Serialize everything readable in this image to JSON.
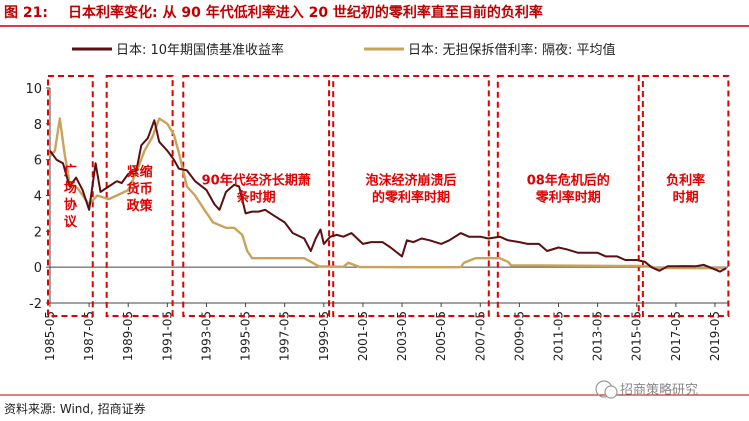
{
  "header": {
    "figure_label": "图 21:",
    "title": "日本利率变化: 从 90 年代低利率进入 20 世纪初的零利率直至目前的负利率"
  },
  "footer": {
    "source": "资料来源: Wind, 招商证券",
    "watermark": "招商策略研究"
  },
  "colors": {
    "header_red": "#c00000",
    "jgb_line": "#5a0f10",
    "call_rate_line": "#c9a35a",
    "annotation_red": "#e00000"
  },
  "chart_data": {
    "type": "line",
    "title": "",
    "xlabel": "",
    "ylabel": "",
    "ylim": [
      -2,
      10
    ],
    "yticks": [
      -2,
      0,
      2,
      4,
      6,
      8,
      10
    ],
    "xlim": [
      "1985-05",
      "2020-01"
    ],
    "xticks": [
      "1985-05",
      "1987-05",
      "1989-05",
      "1991-05",
      "1993-05",
      "1995-05",
      "1997-05",
      "1999-05",
      "2001-05",
      "2003-05",
      "2005-05",
      "2007-05",
      "2009-05",
      "2011-05",
      "2013-05",
      "2015-05",
      "2017-05",
      "2019-05"
    ],
    "legend_position": "top",
    "grid": false,
    "series": [
      {
        "name": "日本: 10年期国债基准收益率",
        "color": "#5a0f10",
        "points": [
          [
            "1985-05",
            6.5
          ],
          [
            "1985-09",
            6.0
          ],
          [
            "1986-01",
            5.8
          ],
          [
            "1986-05",
            4.5
          ],
          [
            "1986-09",
            5.0
          ],
          [
            "1987-01",
            4.3
          ],
          [
            "1987-05",
            3.2
          ],
          [
            "1987-09",
            5.8
          ],
          [
            "1987-12",
            4.2
          ],
          [
            "1988-05",
            4.5
          ],
          [
            "1988-10",
            4.8
          ],
          [
            "1989-01",
            4.7
          ],
          [
            "1989-05",
            5.2
          ],
          [
            "1989-10",
            5.4
          ],
          [
            "1990-01",
            6.8
          ],
          [
            "1990-05",
            7.2
          ],
          [
            "1990-09",
            8.2
          ],
          [
            "1990-12",
            7.0
          ],
          [
            "1991-05",
            6.5
          ],
          [
            "1991-09",
            6.0
          ],
          [
            "1991-12",
            5.5
          ],
          [
            "1992-05",
            5.4
          ],
          [
            "1992-10",
            4.8
          ],
          [
            "1993-05",
            4.3
          ],
          [
            "1993-10",
            3.5
          ],
          [
            "1994-01",
            3.2
          ],
          [
            "1994-05",
            4.2
          ],
          [
            "1994-10",
            4.6
          ],
          [
            "1995-01",
            4.5
          ],
          [
            "1995-05",
            3.0
          ],
          [
            "1995-09",
            3.1
          ],
          [
            "1996-01",
            3.1
          ],
          [
            "1996-05",
            3.2
          ],
          [
            "1996-10",
            2.9
          ],
          [
            "1997-05",
            2.5
          ],
          [
            "1997-10",
            1.9
          ],
          [
            "1998-05",
            1.6
          ],
          [
            "1998-09",
            0.9
          ],
          [
            "1998-12",
            1.6
          ],
          [
            "1999-03",
            2.1
          ],
          [
            "1999-05",
            1.3
          ],
          [
            "1999-09",
            1.7
          ],
          [
            "2000-01",
            1.8
          ],
          [
            "2000-05",
            1.7
          ],
          [
            "2000-10",
            1.9
          ],
          [
            "2001-05",
            1.3
          ],
          [
            "2001-10",
            1.4
          ],
          [
            "2002-05",
            1.4
          ],
          [
            "2002-10",
            1.1
          ],
          [
            "2003-05",
            0.6
          ],
          [
            "2003-08",
            1.5
          ],
          [
            "2003-12",
            1.4
          ],
          [
            "2004-05",
            1.6
          ],
          [
            "2004-10",
            1.5
          ],
          [
            "2005-05",
            1.3
          ],
          [
            "2005-10",
            1.5
          ],
          [
            "2006-05",
            1.9
          ],
          [
            "2006-10",
            1.7
          ],
          [
            "2007-05",
            1.7
          ],
          [
            "2007-10",
            1.6
          ],
          [
            "2008-05",
            1.7
          ],
          [
            "2008-10",
            1.5
          ],
          [
            "2009-05",
            1.4
          ],
          [
            "2009-10",
            1.3
          ],
          [
            "2010-05",
            1.3
          ],
          [
            "2010-10",
            0.9
          ],
          [
            "2011-05",
            1.1
          ],
          [
            "2011-10",
            1.0
          ],
          [
            "2012-05",
            0.8
          ],
          [
            "2012-10",
            0.8
          ],
          [
            "2013-05",
            0.8
          ],
          [
            "2013-10",
            0.6
          ],
          [
            "2014-05",
            0.6
          ],
          [
            "2014-10",
            0.4
          ],
          [
            "2015-05",
            0.4
          ],
          [
            "2015-10",
            0.3
          ],
          [
            "2016-02",
            0.0
          ],
          [
            "2016-07",
            -0.2
          ],
          [
            "2016-12",
            0.05
          ],
          [
            "2017-05",
            0.05
          ],
          [
            "2017-10",
            0.06
          ],
          [
            "2018-05",
            0.05
          ],
          [
            "2018-10",
            0.13
          ],
          [
            "2019-03",
            -0.05
          ],
          [
            "2019-08",
            -0.25
          ],
          [
            "2019-12",
            -0.05
          ]
        ]
      },
      {
        "name": "日本: 无担保拆借利率: 隔夜: 平均值",
        "color": "#c9a35a",
        "points": [
          [
            "1985-05",
            6.2
          ],
          [
            "1985-08",
            6.5
          ],
          [
            "1985-11",
            8.3
          ],
          [
            "1986-02",
            6.3
          ],
          [
            "1986-05",
            4.7
          ],
          [
            "1986-10",
            4.4
          ],
          [
            "1987-05",
            3.5
          ],
          [
            "1987-10",
            4.0
          ],
          [
            "1988-05",
            3.8
          ],
          [
            "1988-10",
            4.0
          ],
          [
            "1989-05",
            4.3
          ],
          [
            "1989-10",
            5.3
          ],
          [
            "1990-03",
            6.5
          ],
          [
            "1990-08",
            7.3
          ],
          [
            "1990-12",
            8.3
          ],
          [
            "1991-05",
            8.0
          ],
          [
            "1991-09",
            7.4
          ],
          [
            "1991-12",
            6.4
          ],
          [
            "1992-05",
            4.5
          ],
          [
            "1992-10",
            4.0
          ],
          [
            "1993-03",
            3.3
          ],
          [
            "1993-09",
            2.5
          ],
          [
            "1994-05",
            2.2
          ],
          [
            "1994-10",
            2.2
          ],
          [
            "1995-03",
            1.8
          ],
          [
            "1995-06",
            0.9
          ],
          [
            "1995-09",
            0.5
          ],
          [
            "1996-05",
            0.5
          ],
          [
            "1997-05",
            0.5
          ],
          [
            "1998-05",
            0.5
          ],
          [
            "1998-09",
            0.3
          ],
          [
            "1999-02",
            0.05
          ],
          [
            "2000-05",
            0.02
          ],
          [
            "2000-08",
            0.25
          ],
          [
            "2001-03",
            0.01
          ],
          [
            "2003-05",
            0.0
          ],
          [
            "2005-05",
            0.0
          ],
          [
            "2006-05",
            0.0
          ],
          [
            "2006-07",
            0.25
          ],
          [
            "2007-02",
            0.5
          ],
          [
            "2008-05",
            0.5
          ],
          [
            "2008-10",
            0.3
          ],
          [
            "2008-12",
            0.1
          ],
          [
            "2010-05",
            0.1
          ],
          [
            "2012-05",
            0.08
          ],
          [
            "2014-05",
            0.07
          ],
          [
            "2015-05",
            0.07
          ],
          [
            "2016-02",
            0.03
          ],
          [
            "2016-05",
            -0.05
          ],
          [
            "2017-05",
            -0.05
          ],
          [
            "2018-05",
            -0.06
          ],
          [
            "2019-05",
            -0.06
          ],
          [
            "2019-12",
            -0.05
          ]
        ]
      }
    ],
    "annotations": [
      {
        "text_lines": [
          "广",
          "场",
          "协",
          "议"
        ],
        "period": [
          "1985-05",
          "1987-06"
        ]
      },
      {
        "text_lines": [
          "紧缩",
          "货币",
          "政策"
        ],
        "period": [
          "1988-05",
          "1991-07"
        ]
      },
      {
        "text_lines": [
          "90年代经济长期萧",
          "条时期"
        ],
        "period": [
          "1992-04",
          "1999-07"
        ]
      },
      {
        "text_lines": [
          "泡沫经济崩溃后",
          "的零利率时期"
        ],
        "period": [
          "1999-12",
          "2007-09"
        ]
      },
      {
        "text_lines": [
          "08年危机后的",
          "零利率时期"
        ],
        "period": [
          "2008-05",
          "2015-05"
        ]
      },
      {
        "text_lines": [
          "负利率",
          "时期"
        ],
        "period": [
          "2015-10",
          "2019-12"
        ]
      }
    ]
  }
}
